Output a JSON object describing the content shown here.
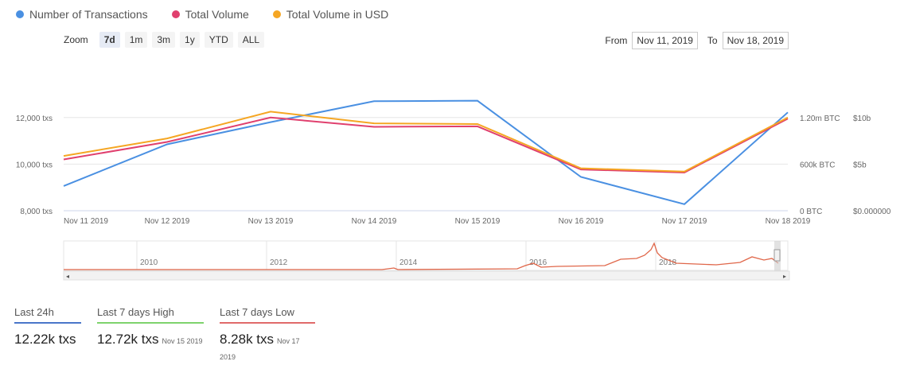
{
  "legend": [
    {
      "label": "Number of Transactions",
      "color": "#4a90e2"
    },
    {
      "label": "Total Volume",
      "color": "#e0406e"
    },
    {
      "label": "Total Volume in USD",
      "color": "#f5a623"
    }
  ],
  "zoom": {
    "label": "Zoom",
    "buttons": [
      "7d",
      "1m",
      "3m",
      "1y",
      "YTD",
      "ALL"
    ],
    "active": "7d"
  },
  "range": {
    "from_label": "From",
    "from_value": "Nov 11, 2019",
    "to_label": "To",
    "to_value": "Nov 18, 2019"
  },
  "chart_data": {
    "type": "line",
    "x": [
      "Nov 11 2019",
      "Nov 12 2019",
      "Nov 13 2019",
      "Nov 14 2019",
      "Nov 15 2019",
      "Nov 16 2019",
      "Nov 17 2019",
      "Nov 18 2019"
    ],
    "series": [
      {
        "name": "Number of Transactions",
        "color": "#4a90e2",
        "values": [
          9060,
          10850,
          11800,
          12700,
          12720,
          9450,
          8280,
          12220
        ]
      },
      {
        "name": "Total Volume",
        "color": "#e0406e",
        "values": [
          10200,
          10950,
          12000,
          11600,
          11620,
          9770,
          9640,
          11950
        ]
      },
      {
        "name": "Total Volume in USD",
        "color": "#f5a623",
        "values": [
          10350,
          11100,
          12250,
          11750,
          11720,
          9820,
          9680,
          12000
        ]
      }
    ],
    "left_axis": {
      "ticks": [
        "12,000 txs",
        "10,000 txs",
        "8,000 txs"
      ],
      "tick_values": [
        12000,
        10000,
        8000
      ]
    },
    "mid_axis": {
      "ticks": [
        "1.20m BTC",
        "600k BTC",
        "0 BTC"
      ]
    },
    "right_axis": {
      "ticks": [
        "$10b",
        "$5b",
        "$0.000000"
      ]
    },
    "ylim": [
      8000,
      13800
    ],
    "navigator": {
      "years": [
        "2010",
        "2012",
        "2014",
        "2016",
        "2018"
      ],
      "color": "#e0674a"
    }
  },
  "stats": [
    {
      "label": "Last 24h",
      "value": "12.22k txs",
      "sub": "",
      "color": "#4a76c9"
    },
    {
      "label": "Last 7 days High",
      "value": "12.72k txs",
      "sub": "Nov 15 2019",
      "color": "#7ed36d"
    },
    {
      "label": "Last 7 days Low",
      "value": "8.28k txs",
      "sub": "Nov 17 2019",
      "color": "#e06a6a"
    }
  ]
}
